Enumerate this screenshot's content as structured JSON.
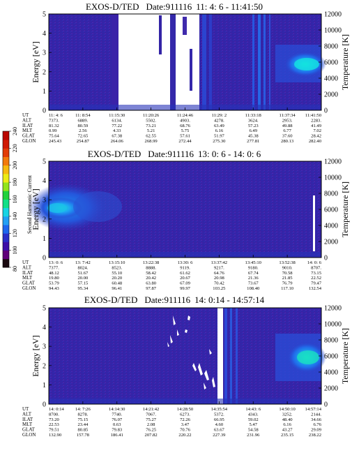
{
  "colorbar": {
    "label": "Second Harmonic Current",
    "ticks": [
      "80",
      "100",
      "120",
      "140",
      "160",
      "180",
      "200",
      "220",
      "240"
    ],
    "colors": [
      "#1a0a10",
      "#60007a",
      "#3d0fa8",
      "#2a2ec8",
      "#1e66ee",
      "#22a0f4",
      "#18d4e4",
      "#10e088",
      "#22d23c",
      "#92e41a",
      "#ecec14",
      "#f6ba0e",
      "#f27a0c",
      "#e23c08",
      "#d01a04",
      "#ba0600"
    ]
  },
  "chart_data": [
    {
      "type": "heatmap",
      "title": "EXOS-D/TED",
      "date_label": "Date:911116",
      "time_range": "11: 4: 6 - 11:41:50",
      "ylabel": "Energy [eV]",
      "ylim": [
        0,
        5
      ],
      "yticks": [
        "0",
        "1",
        "2",
        "3",
        "4",
        "5"
      ],
      "y2label": "Temperature [K]",
      "y2lim": [
        0,
        12000
      ],
      "y2ticks": [
        "0",
        "2000",
        "4000",
        "6000",
        "8000",
        "10000",
        "12000"
      ],
      "orbit_rows": [
        "UT",
        "ALT",
        "ILAT",
        "MLT",
        "GLAT",
        "GLON"
      ],
      "orbit_columns": [
        [
          "11: 4: 6",
          "7373.",
          "81.32",
          "0.99",
          "75.64",
          "245.43"
        ],
        [
          "11: 8:54",
          "6889.",
          "80.59",
          "2.56",
          "72.65",
          "254.87"
        ],
        [
          "11:15:30",
          "6134.",
          "77.22",
          "4.33",
          "67.38",
          "264.06"
        ],
        [
          "11:20:26",
          "5502.",
          "73.21",
          "5.21",
          "62.55",
          "268.99"
        ],
        [
          "11:24:46",
          "4903.",
          "68.76",
          "5.75",
          "57.61",
          "272.44"
        ],
        [
          "11:29: 2",
          "4278.",
          "63.49",
          "6.16",
          "51.97",
          "275.30"
        ],
        [
          "11:33:18",
          "3624.",
          "57.23",
          "6.49",
          "45.38",
          "277.81"
        ],
        [
          "11:37:34",
          "2953.",
          "49.88",
          "6.77",
          "37.60",
          "280.13"
        ],
        [
          "11:41:50",
          "2283.",
          "41.49",
          "7.02",
          "28.42",
          "282.40"
        ]
      ]
    },
    {
      "type": "heatmap",
      "title": "EXOS-D/TED",
      "date_label": "Date:911116",
      "time_range": "13: 0: 6 - 14: 0: 6",
      "ylabel": "Energy [eV]",
      "ylim": [
        0,
        5
      ],
      "yticks": [
        "0",
        "1",
        "2",
        "3",
        "4",
        "5"
      ],
      "y2label": "Temperature [K]",
      "y2lim": [
        0,
        12000
      ],
      "y2ticks": [
        "0",
        "2000",
        "4000",
        "6000",
        "8000",
        "10000",
        "12000"
      ],
      "orbit_rows": [
        "UT",
        "ALT",
        "ILAT",
        "MLT",
        "GLAT",
        "GLON"
      ],
      "orbit_columns": [
        [
          "13: 0: 6",
          "7377.",
          "48.12",
          "19.80",
          "53.79",
          "94.43"
        ],
        [
          "13: 7:42",
          "8024.",
          "51.67",
          "20.00",
          "57.15",
          "95.34"
        ],
        [
          "13:15:10",
          "8523.",
          "55.10",
          "20.20",
          "60.48",
          "96.41"
        ],
        [
          "13:22:38",
          "8888.",
          "58.42",
          "20.42",
          "63.80",
          "97.87"
        ],
        [
          "13:30: 6",
          "9119.",
          "61.62",
          "20.67",
          "67.09",
          "99.97"
        ],
        [
          "13:37:42",
          "9217.",
          "64.76",
          "20.98",
          "70.42",
          "103.25"
        ],
        [
          "13:45:10",
          "9180.",
          "67.74",
          "21.36",
          "73.67",
          "108.40"
        ],
        [
          "13:52:38",
          "9010.",
          "70.58",
          "21.85",
          "76.79",
          "117.10"
        ],
        [
          "14: 0: 6",
          "8707.",
          "73.15",
          "22.52",
          "79.47",
          "132.54"
        ]
      ]
    },
    {
      "type": "heatmap",
      "title": "EXOS-D/TED",
      "date_label": "Date:911116",
      "time_range": "14: 0:14 - 14:57:14",
      "ylabel": "Energy [eV]",
      "ylim": [
        0,
        5
      ],
      "yticks": [
        "0",
        "1",
        "2",
        "3",
        "4",
        "5"
      ],
      "y2label": "Temperature [K]",
      "y2lim": [
        0,
        12000
      ],
      "y2ticks": [
        "0",
        "2000",
        "4000",
        "6000",
        "8000",
        "10000",
        "12000"
      ],
      "orbit_rows": [
        "UT",
        "ALT",
        "ILAT",
        "MLT",
        "GLAT",
        "GLON"
      ],
      "orbit_columns": [
        [
          "14: 0:14",
          "8700.",
          "73.20",
          "22.53",
          "79.51",
          "132.90"
        ],
        [
          "14: 7:26",
          "8278.",
          "75.15",
          "23.44",
          "80.85",
          "157.78"
        ],
        [
          "14:14:30",
          "7740.",
          "76.07",
          "0.63",
          "79.83",
          "186.41"
        ],
        [
          "14:21:42",
          "7067.",
          "75.27",
          "2.08",
          "76.25",
          "207.82"
        ],
        [
          "14:28:50",
          "6273.",
          "72.26",
          "3.47",
          "70.76",
          "220.22"
        ],
        [
          "14:35:54",
          "5372.",
          "66.95",
          "4.60",
          "63.67",
          "227.39"
        ],
        [
          "14:43: 6",
          "4343.",
          "59.02",
          "5.47",
          "54.58",
          "231.96"
        ],
        [
          "14:50:10",
          "3252.",
          "48.40",
          "6.16",
          "43.27",
          "235.15"
        ],
        [
          "14:57:14",
          "2144.",
          "34.66",
          "6.76",
          "29.09",
          "238.22"
        ]
      ]
    }
  ]
}
